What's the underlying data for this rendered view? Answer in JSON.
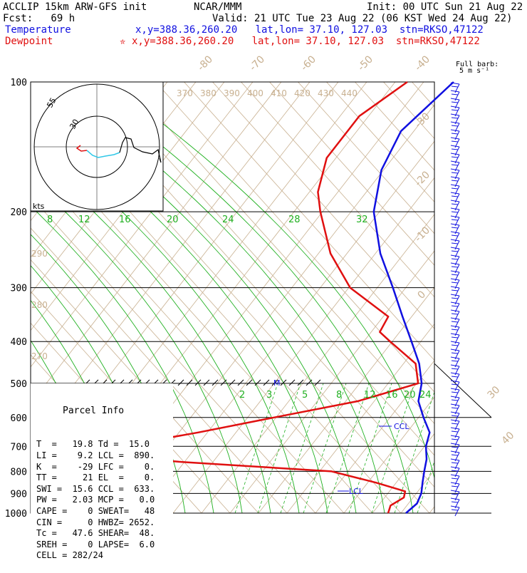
{
  "header": {
    "model": "ACCLIP 15km ARW-GFS init",
    "fcst": "Fcst:   69 h",
    "org": "NCAR/MMM",
    "init": "Init: 00 UTC Sun 21 Aug 22",
    "valid": "Valid: 21 UTC Tue 23 Aug 22 (06 KST Wed 24 Aug 22)",
    "temp_label": "Temperature",
    "dew_label": "Dewpoint",
    "temp_loc": "x,y=388.36,260.20   lat,lon= 37.10, 127.03  stn=RKSO,47122",
    "dew_loc": "x,y=388.36,260.20   lat,lon= 37.10, 127.03  stn=RKSO,47122",
    "dew_marker": "✮"
  },
  "barb_title": [
    "Full barb:",
    "5 m s⁻¹"
  ],
  "hodo": {
    "ring_labels": [
      "55",
      "30"
    ],
    "units": "kts"
  },
  "parcel": {
    "title": "Parcel Info",
    "rows": [
      "T  =   19.8 Td =  15.0",
      "LI =    9.2 LCL =  890.",
      "K  =    -29 LFC =    0.",
      "TT =     21 EL  =    0.",
      "SWI =  15.6 CCL =  633.",
      "PW =   2.03 MCP =   0.0",
      "CAPE =    0 SWEAT=   48",
      "CIN =     0 HWBZ= 2652.",
      "Tc =   47.6 SHEAR=  48.",
      "SREH =    0 LAPSE=  6.0",
      "CELL = 282/24"
    ]
  },
  "annotations": {
    "ccl": "CCL",
    "lcl": "LCL",
    "m": "M"
  },
  "colors": {
    "temperature": "#1010e0",
    "dewpoint": "#e01010",
    "dry_adiabat": "#c8b090",
    "moist_adiabat": "#20b020",
    "isobar": "#000000",
    "grid": "#c8c8c8"
  },
  "chart_data": {
    "type": "line",
    "title": "",
    "pressure_levels_hPa": [
      100,
      200,
      300,
      400,
      500,
      600,
      700,
      800,
      900,
      1000
    ],
    "isotherm_labels": [
      "-80",
      "-70",
      "-60",
      "-50",
      "-40",
      "-30",
      "-20",
      "-10",
      "0",
      "30",
      "40"
    ],
    "theta_labels": [
      "370",
      "380",
      "390",
      "400",
      "410",
      "420",
      "430",
      "440"
    ],
    "theta_side_labels": [
      "290",
      "280",
      "270"
    ],
    "mixing_ratio_labels_top": [
      "8",
      "12",
      "16",
      "20",
      "24",
      "28",
      "32"
    ],
    "mixing_ratio_labels_bottom": [
      "2",
      "3",
      "5",
      "8",
      "12",
      "16",
      "20",
      "24"
    ],
    "series": [
      {
        "name": "Temperature",
        "points": [
          [
            100,
            -61
          ],
          [
            130,
            -65
          ],
          [
            160,
            -62
          ],
          [
            200,
            -55
          ],
          [
            250,
            -44
          ],
          [
            300,
            -33
          ],
          [
            350,
            -24
          ],
          [
            400,
            -16
          ],
          [
            450,
            -9
          ],
          [
            500,
            -4
          ],
          [
            550,
            -1
          ],
          [
            600,
            4
          ],
          [
            650,
            9
          ],
          [
            700,
            11
          ],
          [
            750,
            14
          ],
          [
            800,
            16
          ],
          [
            850,
            18
          ],
          [
            900,
            20
          ],
          [
            950,
            21
          ],
          [
            1000,
            20
          ]
        ]
      },
      {
        "name": "Dewpoint",
        "points": [
          [
            100,
            -74
          ],
          [
            120,
            -80
          ],
          [
            150,
            -80
          ],
          [
            180,
            -75
          ],
          [
            200,
            -70
          ],
          [
            250,
            -58
          ],
          [
            300,
            -45
          ],
          [
            350,
            -28
          ],
          [
            380,
            -27
          ],
          [
            400,
            -22
          ],
          [
            450,
            -10
          ],
          [
            500,
            -5
          ],
          [
            550,
            -18
          ],
          [
            600,
            -38
          ],
          [
            650,
            -56
          ],
          [
            700,
            -75
          ],
          [
            720,
            -90
          ],
          [
            760,
            -55
          ],
          [
            800,
            -10
          ],
          [
            850,
            5
          ],
          [
            890,
            15
          ],
          [
            920,
            16
          ],
          [
            960,
            14
          ],
          [
            1000,
            15
          ]
        ]
      }
    ],
    "grid": true
  }
}
